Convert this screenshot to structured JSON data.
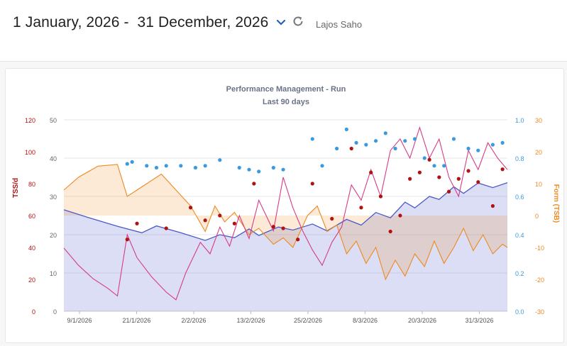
{
  "header": {
    "date_range": "1 January, 2026 -  31 December, 2026",
    "user_name": "Lajos Saho"
  },
  "chart": {
    "title": "Performance Management - Run",
    "subtitle": "Last 90 days",
    "left_outer_axis_label": "TSS/d",
    "right_outer_axis_label": "Form (TSB)",
    "x_ticks": [
      "9/1/2026",
      "21/1/2026",
      "2/2/2026",
      "13/2/2026",
      "25/2/2026",
      "8/3/2026",
      "20/3/2026",
      "31/3/2026"
    ],
    "tss_ticks": [
      "0",
      "20",
      "40",
      "60",
      "80",
      "100",
      "120"
    ],
    "ctl_ticks": [
      "0",
      "10",
      "20",
      "30",
      "40",
      "50"
    ],
    "if_ticks": [
      "0.0",
      "0.2",
      "0.4",
      "0.6",
      "0.8",
      "1.0"
    ],
    "tsb_ticks": [
      "-30",
      "-20",
      "-10",
      "0",
      "10",
      "20",
      "30"
    ]
  },
  "colors": {
    "tss": "#b01212",
    "intensity": "#3a9ae0",
    "tsb": "#ee8a20",
    "ctl": "#4a5bc8",
    "atl": "#d63c86"
  },
  "chart_data": {
    "type": "line",
    "title": "Performance Management - Run",
    "subtitle": "Last 90 days",
    "x_range": [
      "2026-01-03",
      "2026-04-04"
    ],
    "axes": {
      "tss_per_day": {
        "label": "TSS/d",
        "range": [
          0,
          120
        ]
      },
      "fitness_fatigue": {
        "range": [
          0,
          50
        ]
      },
      "intensity_factor": {
        "range": [
          0.0,
          1.0
        ]
      },
      "form_tsb": {
        "label": "Form (TSB)",
        "range": [
          -30,
          30
        ]
      }
    },
    "legend": "none",
    "grid": true,
    "series": [
      {
        "kind": "line-area",
        "axis": "fitness_fatigue",
        "color": "#4a5bc8",
        "points": [
          [
            "2026-01-03",
            26.5
          ],
          [
            "2026-01-08",
            24.5
          ],
          [
            "2026-01-14",
            22.2
          ],
          [
            "2026-01-19",
            20.5
          ],
          [
            "2026-01-22",
            22.3
          ],
          [
            "2026-01-27",
            20.5
          ],
          [
            "2026-02-01",
            18.5
          ],
          [
            "2026-02-04",
            20
          ],
          [
            "2026-02-07",
            19.2
          ],
          [
            "2026-02-10",
            21.5
          ],
          [
            "2026-02-12",
            19.8
          ],
          [
            "2026-02-16",
            22
          ],
          [
            "2026-02-19",
            21.2
          ],
          [
            "2026-02-23",
            22.8
          ],
          [
            "2026-02-26",
            21
          ],
          [
            "2026-03-02",
            24
          ],
          [
            "2026-03-05",
            22.5
          ],
          [
            "2026-03-08",
            25.8
          ],
          [
            "2026-03-11",
            24.4
          ],
          [
            "2026-03-14",
            28.5
          ],
          [
            "2026-03-16",
            27
          ],
          [
            "2026-03-19",
            30
          ],
          [
            "2026-03-21",
            29.2
          ],
          [
            "2026-03-24",
            32.5
          ],
          [
            "2026-03-26",
            30.8
          ],
          [
            "2026-03-29",
            33.5
          ],
          [
            "2026-04-01",
            32.3
          ],
          [
            "2026-04-04",
            33.6
          ]
        ]
      },
      {
        "kind": "line",
        "axis": "fitness_fatigue",
        "color": "#d63c86",
        "points": [
          [
            "2026-01-03",
            16.5
          ],
          [
            "2026-01-06",
            12
          ],
          [
            "2026-01-09",
            8.5
          ],
          [
            "2026-01-12",
            6
          ],
          [
            "2026-01-14",
            4
          ],
          [
            "2026-01-16",
            20
          ],
          [
            "2026-01-18",
            14
          ],
          [
            "2026-01-21",
            9
          ],
          [
            "2026-01-24",
            5
          ],
          [
            "2026-01-26",
            3
          ],
          [
            "2026-01-28",
            10
          ],
          [
            "2026-01-31",
            18
          ],
          [
            "2026-02-02",
            15
          ],
          [
            "2026-02-04",
            22
          ],
          [
            "2026-02-06",
            17
          ],
          [
            "2026-02-08",
            25
          ],
          [
            "2026-02-10",
            19
          ],
          [
            "2026-02-12",
            29
          ],
          [
            "2026-02-15",
            21
          ],
          [
            "2026-02-17",
            35
          ],
          [
            "2026-02-19",
            27
          ],
          [
            "2026-02-21",
            21
          ],
          [
            "2026-02-23",
            16
          ],
          [
            "2026-02-25",
            12
          ],
          [
            "2026-02-27",
            18
          ],
          [
            "2026-03-01",
            22
          ],
          [
            "2026-03-03",
            33
          ],
          [
            "2026-03-05",
            29
          ],
          [
            "2026-03-07",
            37
          ],
          [
            "2026-03-09",
            30
          ],
          [
            "2026-03-11",
            42
          ],
          [
            "2026-03-13",
            45
          ],
          [
            "2026-03-15",
            40
          ],
          [
            "2026-03-17",
            48
          ],
          [
            "2026-03-19",
            40
          ],
          [
            "2026-03-21",
            45
          ],
          [
            "2026-03-23",
            35
          ],
          [
            "2026-03-25",
            30
          ],
          [
            "2026-03-27",
            42
          ],
          [
            "2026-03-29",
            37
          ],
          [
            "2026-03-31",
            44
          ],
          [
            "2026-04-02",
            40
          ],
          [
            "2026-04-04",
            37
          ]
        ]
      },
      {
        "kind": "line-area",
        "axis": "form_tsb",
        "color": "#ee8a20",
        "points": [
          [
            "2026-01-03",
            8
          ],
          [
            "2026-01-06",
            12
          ],
          [
            "2026-01-10",
            15.5
          ],
          [
            "2026-01-14",
            16
          ],
          [
            "2026-01-16",
            6
          ],
          [
            "2026-01-19",
            9
          ],
          [
            "2026-01-23",
            13
          ],
          [
            "2026-01-26",
            8
          ],
          [
            "2026-01-29",
            3
          ],
          [
            "2026-02-01",
            -5
          ],
          [
            "2026-02-03",
            3
          ],
          [
            "2026-02-05",
            -2
          ],
          [
            "2026-02-07",
            1
          ],
          [
            "2026-02-10",
            -6
          ],
          [
            "2026-02-12",
            -4
          ],
          [
            "2026-02-15",
            -9
          ],
          [
            "2026-02-17",
            -7
          ],
          [
            "2026-02-19",
            -10
          ],
          [
            "2026-02-22",
            0
          ],
          [
            "2026-02-24",
            3
          ],
          [
            "2026-02-26",
            -5
          ],
          [
            "2026-02-28",
            -3
          ],
          [
            "2026-03-02",
            -12
          ],
          [
            "2026-03-04",
            -8
          ],
          [
            "2026-03-06",
            -15
          ],
          [
            "2026-03-08",
            -10
          ],
          [
            "2026-03-10",
            -20
          ],
          [
            "2026-03-12",
            -14
          ],
          [
            "2026-03-14",
            -19
          ],
          [
            "2026-03-16",
            -12
          ],
          [
            "2026-03-18",
            -16
          ],
          [
            "2026-03-20",
            -8
          ],
          [
            "2026-03-22",
            -15
          ],
          [
            "2026-03-24",
            -10
          ],
          [
            "2026-03-26",
            -4
          ],
          [
            "2026-03-28",
            -11
          ],
          [
            "2026-03-30",
            -6
          ],
          [
            "2026-04-01",
            -12
          ],
          [
            "2026-04-03",
            -9
          ],
          [
            "2026-04-04",
            -10
          ]
        ]
      },
      {
        "kind": "scatter",
        "axis": "tss_per_day",
        "color": "#b01212",
        "points": [
          [
            "2026-01-16",
            45
          ],
          [
            "2026-01-18",
            55
          ],
          [
            "2026-01-24",
            52
          ],
          [
            "2026-01-29",
            65
          ],
          [
            "2026-02-01",
            57
          ],
          [
            "2026-02-04",
            60
          ],
          [
            "2026-02-07",
            55
          ],
          [
            "2026-02-11",
            80
          ],
          [
            "2026-02-15",
            53
          ],
          [
            "2026-02-17",
            52
          ],
          [
            "2026-02-20",
            45
          ],
          [
            "2026-02-23",
            80
          ],
          [
            "2026-02-27",
            58
          ],
          [
            "2026-03-03",
            102
          ],
          [
            "2026-03-05",
            65
          ],
          [
            "2026-03-07",
            87
          ],
          [
            "2026-03-09",
            72
          ],
          [
            "2026-03-11",
            50
          ],
          [
            "2026-03-13",
            60
          ],
          [
            "2026-03-15",
            83
          ],
          [
            "2026-03-17",
            87
          ],
          [
            "2026-03-19",
            95
          ],
          [
            "2026-03-21",
            84
          ],
          [
            "2026-03-23",
            75
          ],
          [
            "2026-03-25",
            83
          ],
          [
            "2026-03-27",
            88
          ],
          [
            "2026-03-29",
            81
          ],
          [
            "2026-04-01",
            66
          ],
          [
            "2026-04-03",
            89
          ]
        ]
      },
      {
        "kind": "scatter",
        "axis": "intensity_factor",
        "color": "#3a9ae0",
        "points": [
          [
            "2026-01-16",
            0.77
          ],
          [
            "2026-01-17",
            0.78
          ],
          [
            "2026-01-20",
            0.76
          ],
          [
            "2026-01-22",
            0.75
          ],
          [
            "2026-01-24",
            0.76
          ],
          [
            "2026-01-27",
            0.76
          ],
          [
            "2026-01-30",
            0.75
          ],
          [
            "2026-02-01",
            0.76
          ],
          [
            "2026-02-04",
            0.79
          ],
          [
            "2026-02-08",
            0.75
          ],
          [
            "2026-02-10",
            0.74
          ],
          [
            "2026-02-12",
            0.73
          ],
          [
            "2026-02-15",
            0.75
          ],
          [
            "2026-02-17",
            0.74
          ],
          [
            "2026-02-23",
            0.9
          ],
          [
            "2026-02-25",
            0.76
          ],
          [
            "2026-02-28",
            0.85
          ],
          [
            "2026-03-02",
            0.95
          ],
          [
            "2026-03-04",
            0.88
          ],
          [
            "2026-03-06",
            0.87
          ],
          [
            "2026-03-08",
            0.89
          ],
          [
            "2026-03-10",
            0.93
          ],
          [
            "2026-03-12",
            0.85
          ],
          [
            "2026-03-14",
            0.89
          ],
          [
            "2026-03-16",
            0.9
          ],
          [
            "2026-03-18",
            0.8
          ],
          [
            "2026-03-20",
            0.76
          ],
          [
            "2026-03-22",
            0.76
          ],
          [
            "2026-03-24",
            0.9
          ],
          [
            "2026-03-27",
            0.85
          ],
          [
            "2026-03-29",
            0.84
          ],
          [
            "2026-04-01",
            0.87
          ],
          [
            "2026-04-03",
            0.88
          ]
        ]
      }
    ]
  }
}
